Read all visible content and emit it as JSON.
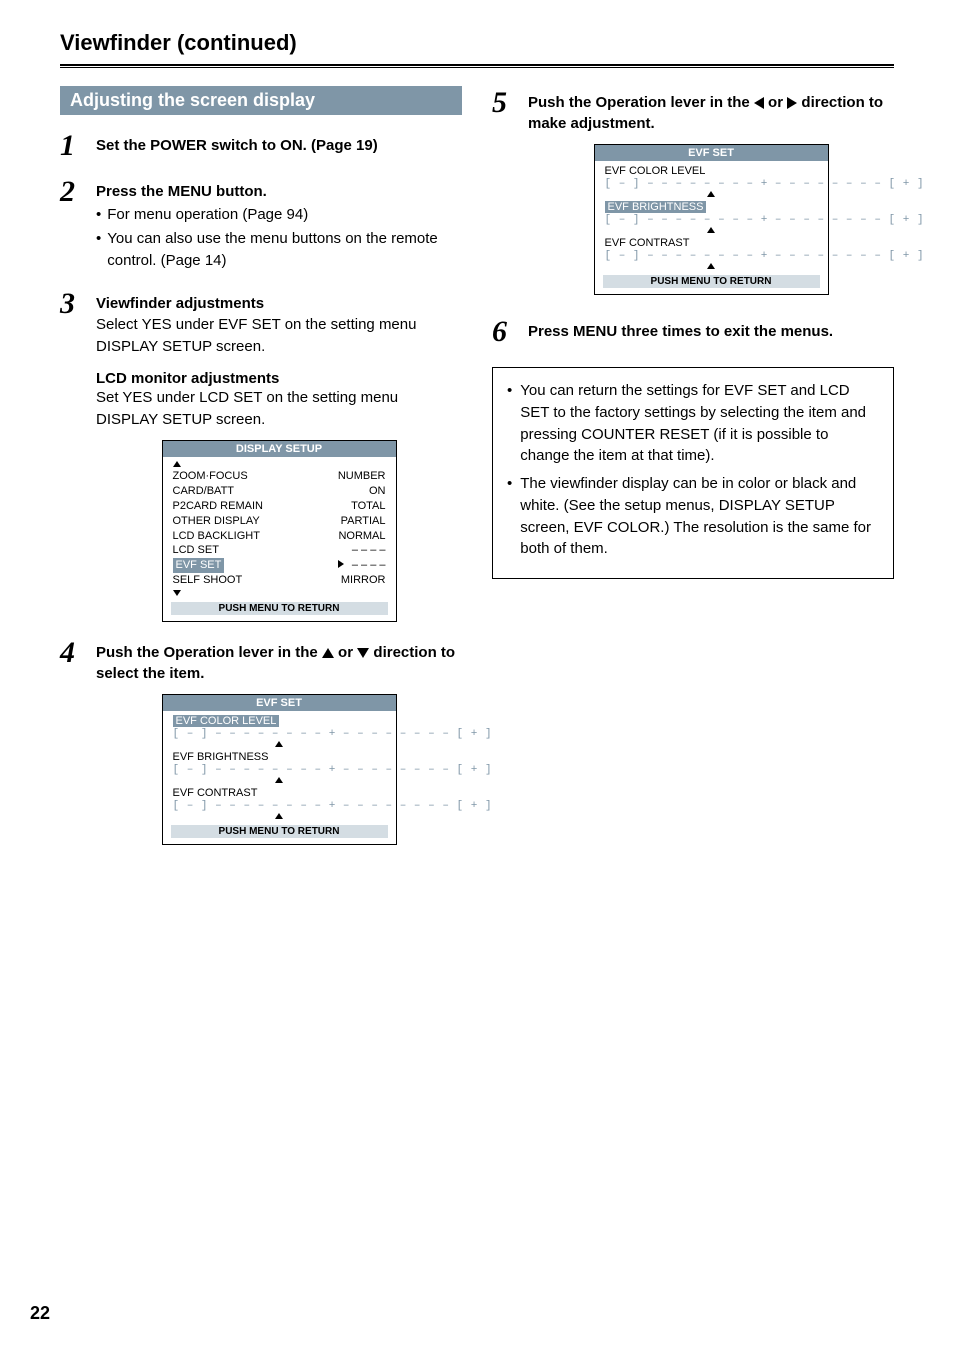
{
  "page": {
    "title": "Viewfinder (continued)",
    "section_bar": "Adjusting the screen display",
    "page_number": "22"
  },
  "steps": {
    "s1": {
      "num": "1",
      "title": "Set the POWER switch to ON. (Page 19)"
    },
    "s2": {
      "num": "2",
      "title": "Press the MENU button.",
      "b1": "For menu operation (Page 94)",
      "b2": "You can also use the menu buttons on the remote control. (Page 14)"
    },
    "s3": {
      "num": "3",
      "title": "Viewfinder adjustments",
      "text": "Select YES under EVF SET on the setting menu DISPLAY SETUP screen.",
      "sub_title": "LCD monitor adjustments",
      "sub_text": "Set YES under LCD SET on the setting menu DISPLAY SETUP screen."
    },
    "s4": {
      "num": "4",
      "title_pre": "Push the Operation lever in the ",
      "title_mid": " or ",
      "title_post": " direction to select the item."
    },
    "s5": {
      "num": "5",
      "title_pre": "Push the Operation lever in the ",
      "title_mid": " or ",
      "title_post": " direction to make adjustment."
    },
    "s6": {
      "num": "6",
      "title": "Press MENU three times to exit the menus."
    }
  },
  "display_setup_menu": {
    "title": "DISPLAY SETUP",
    "rows": [
      {
        "label": "ZOOM·FOCUS",
        "val": "NUMBER"
      },
      {
        "label": "CARD/BATT",
        "val": "ON"
      },
      {
        "label": "P2CARD REMAIN",
        "val": "TOTAL"
      },
      {
        "label": "OTHER DISPLAY",
        "val": "PARTIAL"
      },
      {
        "label": "LCD BACKLIGHT",
        "val": "NORMAL"
      },
      {
        "label": "LCD SET",
        "val": "– – – –"
      },
      {
        "label": "EVF SET",
        "val": "– – – –",
        "highlight": true
      },
      {
        "label": "SELF SHOOT",
        "val": "MIRROR"
      }
    ],
    "footer": "PUSH  MENU TO RETURN"
  },
  "evf_set_menu": {
    "title": "EVF  SET",
    "params": [
      {
        "label": "EVF COLOR LEVEL"
      },
      {
        "label": "EVF BRIGHTNESS"
      },
      {
        "label": "EVF CONTRAST"
      }
    ],
    "slider": "[ – ] – – – – – – – – + – – – – – – – – [ + ]",
    "highlight_step4": 0,
    "highlight_step5": 1,
    "footer": "PUSH  MENU TO RETURN"
  },
  "notes": {
    "n1": "You can return the settings for EVF SET and LCD SET to the factory settings by selecting the item and pressing COUNTER RESET (if it is possible to change the item at that time).",
    "n2": "The viewfinder display can be in color or black and white. (See the setup menus, DISPLAY SETUP screen, EVF COLOR.) The resolution is the same for both of them."
  }
}
